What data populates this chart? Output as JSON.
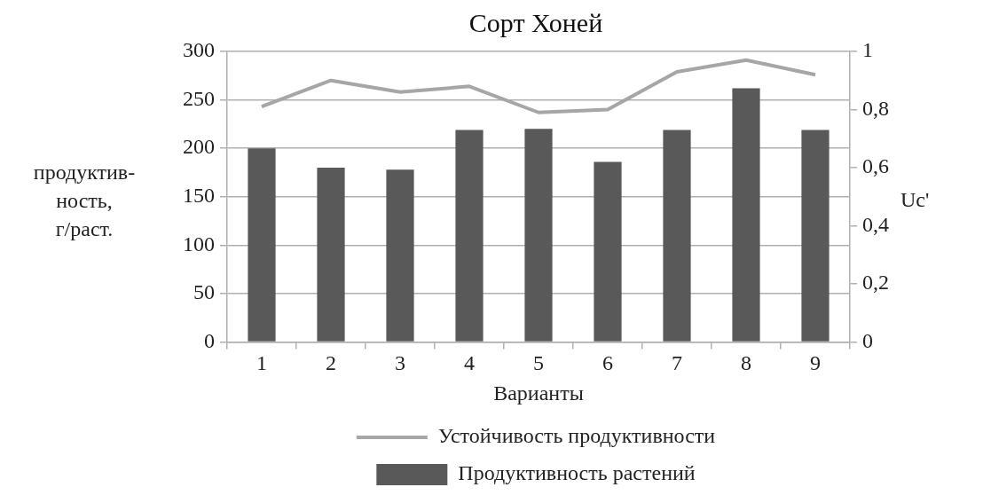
{
  "chart_data": {
    "type": "bar",
    "title": "Сорт Хоней",
    "xlabel": "Варианты",
    "ylabel": "продуктив-ность, г/раст.",
    "y2label": "Uc'",
    "categories": [
      "1",
      "2",
      "3",
      "4",
      "5",
      "6",
      "7",
      "8",
      "9"
    ],
    "series": [
      {
        "name": "Продуктивность растений",
        "color": "#595959",
        "values": [
          200,
          180,
          178,
          219,
          220,
          186,
          219,
          262,
          219
        ]
      },
      {
        "name": "Устойчивость продуктивности",
        "type": "line",
        "axis": "y2",
        "color": "#a6a6a6",
        "marker": "none",
        "values": [
          0.81,
          0.9,
          0.86,
          0.88,
          0.79,
          0.8,
          0.93,
          0.97,
          0.92
        ]
      }
    ],
    "ylim": [
      0,
      300
    ],
    "yticks": [
      0,
      50,
      100,
      150,
      200,
      250,
      300
    ],
    "y2lim": [
      0,
      1
    ],
    "y2ticks": [
      0,
      {
        "value": 0.2,
        "label": "0,2"
      },
      {
        "value": 0.4,
        "label": "0,4"
      },
      {
        "value": 0.6,
        "label": "0,6"
      },
      {
        "value": 0.8,
        "label": "0,8"
      },
      1
    ],
    "grid": "y",
    "legend": "bottom"
  }
}
